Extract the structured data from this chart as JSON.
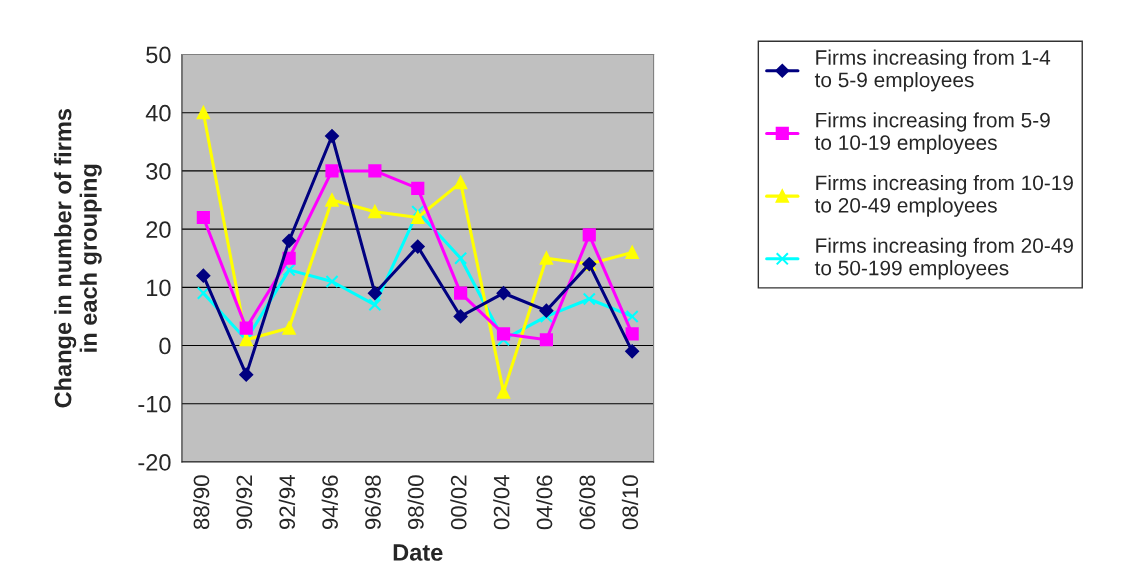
{
  "chart_data": {
    "type": "line",
    "categories": [
      "88/90",
      "90/92",
      "92/94",
      "94/96",
      "96/98",
      "98/00",
      "00/02",
      "02/04",
      "04/06",
      "06/08",
      "08/10"
    ],
    "series": [
      {
        "name": "Firms increasing from 1-4 to 5-9 employees",
        "color": "#000080",
        "marker": "diamond",
        "values": [
          12,
          -5,
          18,
          36,
          9,
          17,
          5,
          9,
          6,
          14,
          -1
        ]
      },
      {
        "name": "Firms increasing from 5-9 to 10-19 employees",
        "color": "#ff00ff",
        "marker": "square",
        "values": [
          22,
          3,
          15,
          30,
          30,
          27,
          9,
          2,
          1,
          19,
          2
        ]
      },
      {
        "name": "Firms increasing from 10-19 to 20-49 employees",
        "color": "#ffff00",
        "marker": "triangle",
        "values": [
          40,
          1,
          3,
          25,
          23,
          22,
          28,
          -8,
          15,
          14,
          16
        ]
      },
      {
        "name": "Firms increasing from 20-49 to 50-199 employees",
        "color": "#00ffff",
        "marker": "cross",
        "values": [
          9,
          1,
          13,
          11,
          7,
          23,
          15,
          1,
          5,
          8,
          5
        ]
      }
    ],
    "xlabel": "Date",
    "ylabel": "Change in number of firms in each grouping",
    "ylim": [
      -20,
      50
    ],
    "yticks": [
      -20,
      -10,
      0,
      10,
      20,
      30,
      40,
      50
    ],
    "grid": "y",
    "legend": "right"
  }
}
